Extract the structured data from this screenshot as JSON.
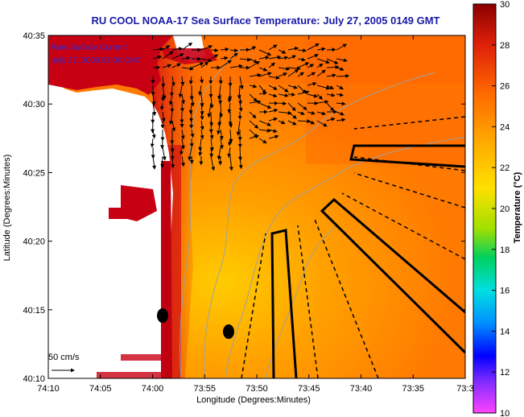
{
  "title": "RU COOL  NOAA-17  Sea Surface Temperature:  July 27, 2005 0149 GMT",
  "overlay": {
    "line1": "Raw Surface Current",
    "line2": "July 27, 2005 02:00 GMT"
  },
  "scale_label": "50 cm/s",
  "axes": {
    "xlabel": "Longitude (Degrees:Minutes)",
    "ylabel": "Latitude (Degrees:Minutes)",
    "xticks": [
      "74:10",
      "74:05",
      "74:00",
      "73:55",
      "73:50",
      "73:45",
      "73:40",
      "73:35",
      "73:3"
    ],
    "yticks": [
      "40:35",
      "40:30",
      "40:25",
      "40:20",
      "40:15",
      "40:10"
    ]
  },
  "colorbar": {
    "label": "Temperature (°C)",
    "ticks": [
      "30",
      "28",
      "26",
      "24",
      "22",
      "20",
      "18",
      "16",
      "14",
      "12",
      "10"
    ]
  },
  "colors": {
    "land": "#ffffff",
    "coast_red": "#c80014",
    "sst_warm": "#ff8a00",
    "sst_mid": "#ffb800",
    "title": "#1a1aa8"
  }
}
